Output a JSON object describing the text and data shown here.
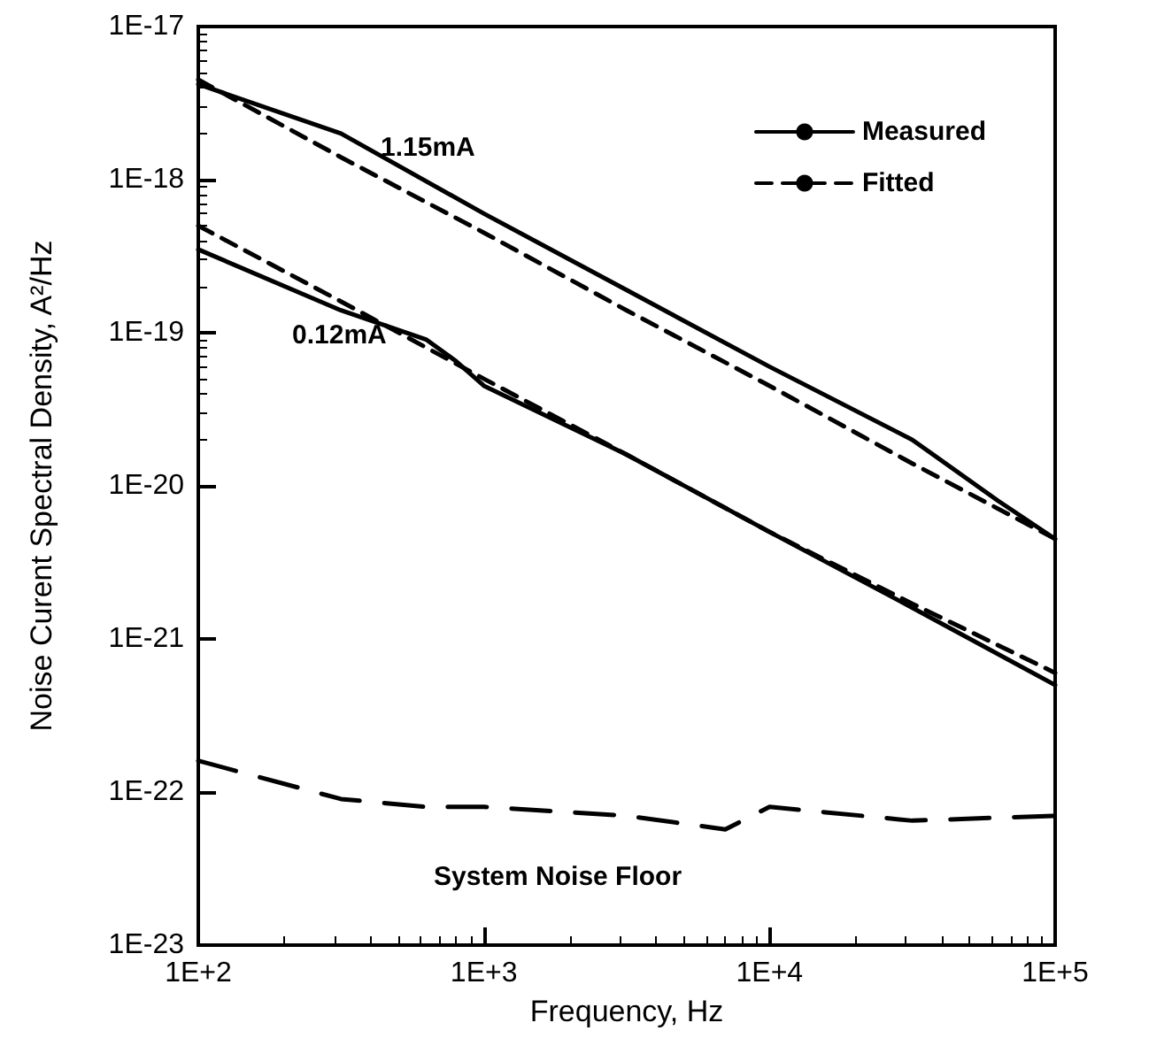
{
  "chart_data": {
    "type": "line",
    "xlabel": "Frequency, Hz",
    "ylabel": "Noise Curent Spectral Density, A²/Hz",
    "log": "xy",
    "grid": false,
    "legend": "top right",
    "marker": "none",
    "xlim": [
      100,
      100000
    ],
    "xticks": [
      {
        "value": 100,
        "label": "1E+2"
      },
      {
        "value": 1000,
        "label": "1E+3"
      },
      {
        "value": 10000,
        "label": "1E+4"
      },
      {
        "value": 100000,
        "label": "1E+5"
      }
    ],
    "ylim": [
      1e-23,
      1e-17
    ],
    "yticks": [
      {
        "value": 1e-23,
        "label": "1E-23"
      },
      {
        "value": 1e-22,
        "label": "1E-22"
      },
      {
        "value": 1e-21,
        "label": "1E-21"
      },
      {
        "value": 1e-20,
        "label": "1E-20"
      },
      {
        "value": 1e-19,
        "label": "1E-19"
      },
      {
        "value": 1e-18,
        "label": "1E-18"
      },
      {
        "value": 1e-17,
        "label": "1E-17"
      }
    ],
    "annotations": [
      "1.15mA",
      "0.12mA",
      "System Noise Floor"
    ],
    "series": [
      {
        "name": "Measured",
        "color": "#000000",
        "line_style": "solid",
        "x": [
          100,
          316,
          1000,
          3160,
          10000,
          31600,
          63000,
          100000
        ],
        "values": [
          4.2e-18,
          2e-18,
          6e-19,
          1.9e-19,
          6e-20,
          2e-20,
          8e-21,
          4.5e-21
        ]
      },
      {
        "name": "Fitted",
        "color": "#000000",
        "line_style": "dashed",
        "x": [
          100,
          316,
          1000,
          3160,
          10000,
          31600,
          100000
        ],
        "values": [
          4.5e-18,
          1.4e-18,
          4.5e-19,
          1.4e-19,
          4.5e-20,
          1.4e-20,
          4.5e-21
        ]
      },
      {
        "color": "#000000",
        "line_style": "solid",
        "x": [
          100,
          316,
          630,
          800,
          1000,
          3160,
          10000,
          31600,
          100000
        ],
        "values": [
          3.5e-19,
          1.4e-19,
          9e-20,
          6.5e-20,
          4.5e-20,
          1.6e-20,
          5e-21,
          1.6e-21,
          5e-22
        ]
      },
      {
        "color": "#000000",
        "line_style": "dashed",
        "x": [
          100,
          316,
          1000,
          3160,
          10000,
          31600,
          100000
        ],
        "values": [
          5e-19,
          1.6e-19,
          5e-20,
          1.6e-20,
          5e-21,
          1.7e-21,
          6e-22
        ]
      },
      {
        "color": "#000000",
        "line_style": "dashed",
        "x": [
          100,
          316,
          630,
          1000,
          3160,
          7000,
          10000,
          31600,
          100000
        ],
        "values": [
          1.6e-22,
          9e-23,
          8e-23,
          8e-23,
          7e-23,
          5.7e-23,
          8e-23,
          6.5e-23,
          7e-23
        ]
      }
    ]
  }
}
